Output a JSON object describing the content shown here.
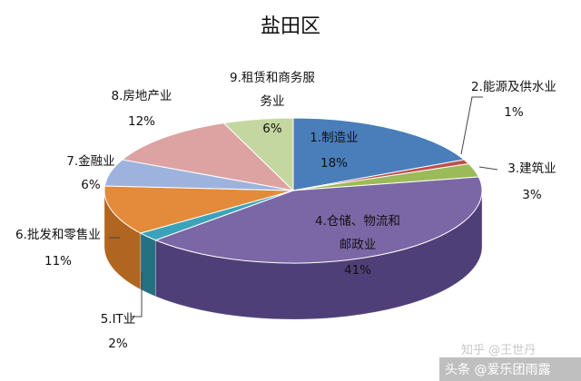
{
  "chart_data": {
    "type": "pie",
    "title": "盐田区",
    "three_d": true,
    "start_angle_deg": 90,
    "direction": "clockwise",
    "slices": [
      {
        "label_lines": [
          "1.制造业"
        ],
        "value_label": "18%",
        "value": 18,
        "color": "#4a7ebb",
        "side_color": "#2e5685"
      },
      {
        "label_lines": [
          "2.能源及供水业"
        ],
        "value_label": "1%",
        "value": 1,
        "color": "#c0504d",
        "side_color": "#8a3432"
      },
      {
        "label_lines": [
          "3.建筑业"
        ],
        "value_label": "3%",
        "value": 3,
        "color": "#9bbb59",
        "side_color": "#6e8a3c"
      },
      {
        "label_lines": [
          "4.仓储、物流和",
          "邮政业"
        ],
        "value_label": "41%",
        "value": 41,
        "color": "#7b67a6",
        "side_color": "#4f3f78"
      },
      {
        "label_lines": [
          "5.IT业"
        ],
        "value_label": "2%",
        "value": 2,
        "color": "#3ba3b9",
        "side_color": "#247181"
      },
      {
        "label_lines": [
          "6.批发和零售业"
        ],
        "value_label": "11%",
        "value": 11,
        "color": "#e38b3a",
        "side_color": "#b06520"
      },
      {
        "label_lines": [
          "7.金融业"
        ],
        "value_label": "6%",
        "value": 6,
        "color": "#9db3dd",
        "side_color": "#6f86b5"
      },
      {
        "label_lines": [
          "8.房地产业"
        ],
        "value_label": "12%",
        "value": 12,
        "color": "#dca3a2",
        "side_color": "#aa7372"
      },
      {
        "label_lines": [
          "9.租赁和商务服",
          "务业"
        ],
        "value_label": "6%",
        "value": 6,
        "color": "#c5d7a0",
        "side_color": "#96aa70"
      }
    ]
  },
  "watermark": "知乎 @王世丹",
  "credit": "头条 @爱乐团雨露"
}
